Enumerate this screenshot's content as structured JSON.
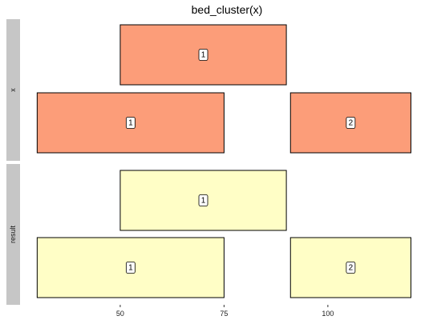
{
  "chart_data": {
    "type": "interval-diagram",
    "title": "bed_cluster(x)",
    "x_ticks": [
      50,
      75,
      100
    ],
    "xlim": [
      28,
      123
    ],
    "fill_colors": {
      "x": "#fc9d79",
      "result": "#fffec6"
    },
    "facets": [
      {
        "label": "x",
        "intervals": [
          {
            "start": 50,
            "end": 90,
            "row": 0,
            "label": "1"
          },
          {
            "start": 30,
            "end": 75,
            "row": 1,
            "label": "1"
          },
          {
            "start": 91,
            "end": 120,
            "row": 1,
            "label": "2"
          }
        ]
      },
      {
        "label": "result",
        "intervals": [
          {
            "start": 50,
            "end": 90,
            "row": 0,
            "label": "1"
          },
          {
            "start": 30,
            "end": 75,
            "row": 1,
            "label": "1"
          },
          {
            "start": 91,
            "end": 120,
            "row": 1,
            "label": "2"
          }
        ]
      }
    ]
  }
}
